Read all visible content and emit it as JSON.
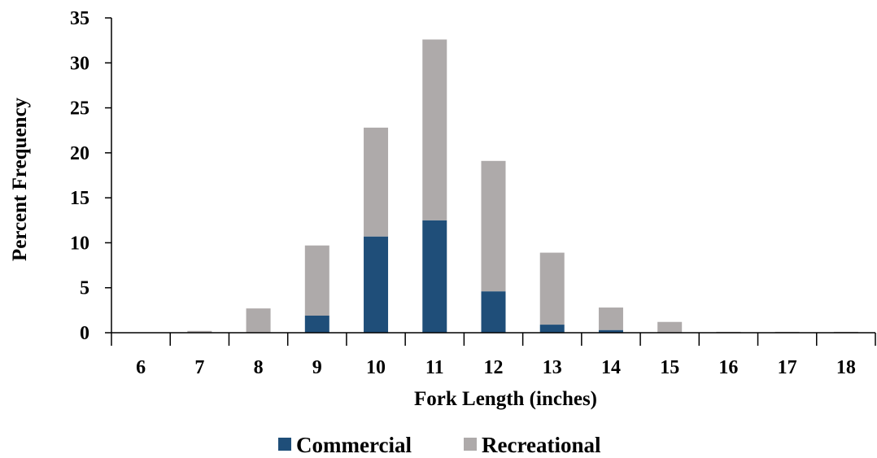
{
  "chart_data": {
    "type": "bar",
    "stacked": true,
    "categories": [
      "6",
      "7",
      "8",
      "9",
      "10",
      "11",
      "12",
      "13",
      "14",
      "15",
      "16",
      "17",
      "18"
    ],
    "series": [
      {
        "name": "Commercial",
        "color": "#1f4e79",
        "values": [
          0,
          0,
          0,
          1.9,
          10.7,
          12.5,
          4.6,
          0.9,
          0.3,
          0,
          0,
          0,
          0
        ]
      },
      {
        "name": "Recreational",
        "color": "#aeaaaa",
        "values": [
          0,
          0.2,
          2.7,
          7.8,
          12.1,
          20.1,
          14.5,
          8.0,
          2.5,
          1.2,
          0.1,
          0.1,
          0.1
        ]
      }
    ],
    "xlabel": "Fork Length (inches)",
    "ylabel": "Percent Frequency",
    "ylim": [
      0,
      35
    ],
    "yticks": [
      0,
      5,
      10,
      15,
      20,
      25,
      30,
      35
    ],
    "grid": false,
    "legend_position": "bottom"
  }
}
